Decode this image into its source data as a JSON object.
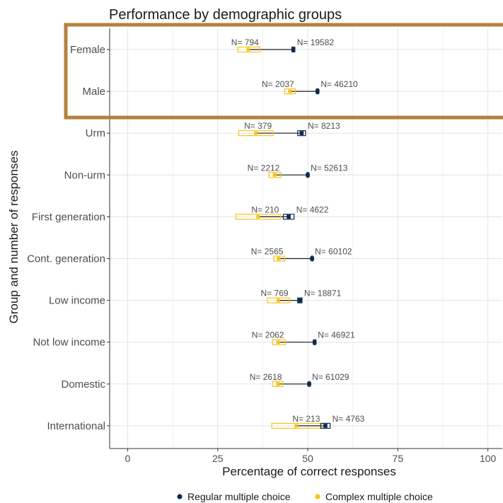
{
  "chart_data": {
    "type": "dot-range",
    "title": "Performance by demographic groups",
    "xlabel": "Percentage of correct responses",
    "ylabel": "Group and number of responses",
    "xlim": [
      -5,
      104
    ],
    "x_ticks": [
      "0",
      "25",
      "50",
      "75",
      "100"
    ],
    "x_tick_values": [
      0,
      25,
      50,
      75,
      100
    ],
    "grid": true,
    "legend_position": "bottom",
    "highlight": {
      "categories": [
        "Female",
        "Male"
      ],
      "color": "#b5813a"
    },
    "series": [
      {
        "name": "Regular multiple choice",
        "color": "#0d2a4f"
      },
      {
        "name": "Complex multiple choice",
        "color": "#f5c518"
      }
    ],
    "categories": [
      "Female",
      "Male",
      "Urm",
      "Non-urm",
      "First generation",
      "Cont. generation",
      "Low income",
      "Not low income",
      "Domestic",
      "International"
    ],
    "regular": [
      {
        "value": 46.0,
        "ci": [
          45.6,
          46.4
        ],
        "n_label": "N= 19582"
      },
      {
        "value": 52.7,
        "ci": [
          52.4,
          53.0
        ],
        "n_label": "N= 46210"
      },
      {
        "value": 48.3,
        "ci": [
          47.2,
          49.4
        ],
        "n_label": "N= 8213"
      },
      {
        "value": 50.0,
        "ci": [
          49.8,
          50.2
        ],
        "n_label": "N= 52613"
      },
      {
        "value": 44.7,
        "ci": [
          43.2,
          46.2
        ],
        "n_label": "N= 4622"
      },
      {
        "value": 51.2,
        "ci": [
          51.0,
          51.4
        ],
        "n_label": "N= 60102"
      },
      {
        "value": 47.8,
        "ci": [
          47.2,
          48.4
        ],
        "n_label": "N= 18871"
      },
      {
        "value": 51.9,
        "ci": [
          51.6,
          52.2
        ],
        "n_label": "N= 46921"
      },
      {
        "value": 50.4,
        "ci": [
          50.2,
          50.6
        ],
        "n_label": "N= 61029"
      },
      {
        "value": 54.9,
        "ci": [
          53.6,
          56.2
        ],
        "n_label": "N= 4763"
      }
    ],
    "complex": [
      {
        "value": 33.5,
        "ci": [
          30.6,
          36.8
        ],
        "n_label": "N= 794"
      },
      {
        "value": 45.0,
        "ci": [
          43.6,
          46.6
        ],
        "n_label": "N= 2037"
      },
      {
        "value": 35.6,
        "ci": [
          30.8,
          40.4
        ],
        "n_label": "N= 379"
      },
      {
        "value": 40.8,
        "ci": [
          39.2,
          42.6
        ],
        "n_label": "N= 2212"
      },
      {
        "value": 36.2,
        "ci": [
          30.0,
          42.4
        ],
        "n_label": "N= 210"
      },
      {
        "value": 41.9,
        "ci": [
          40.6,
          43.6
        ],
        "n_label": "N= 2565"
      },
      {
        "value": 41.8,
        "ci": [
          38.8,
          45.0
        ],
        "n_label": "N= 769"
      },
      {
        "value": 41.8,
        "ci": [
          40.2,
          43.8
        ],
        "n_label": "N= 2062"
      },
      {
        "value": 41.7,
        "ci": [
          40.2,
          43.2
        ],
        "n_label": "N= 2618"
      },
      {
        "value": 46.8,
        "ci": [
          40.0,
          53.8
        ],
        "n_label": "N= 213"
      }
    ]
  }
}
